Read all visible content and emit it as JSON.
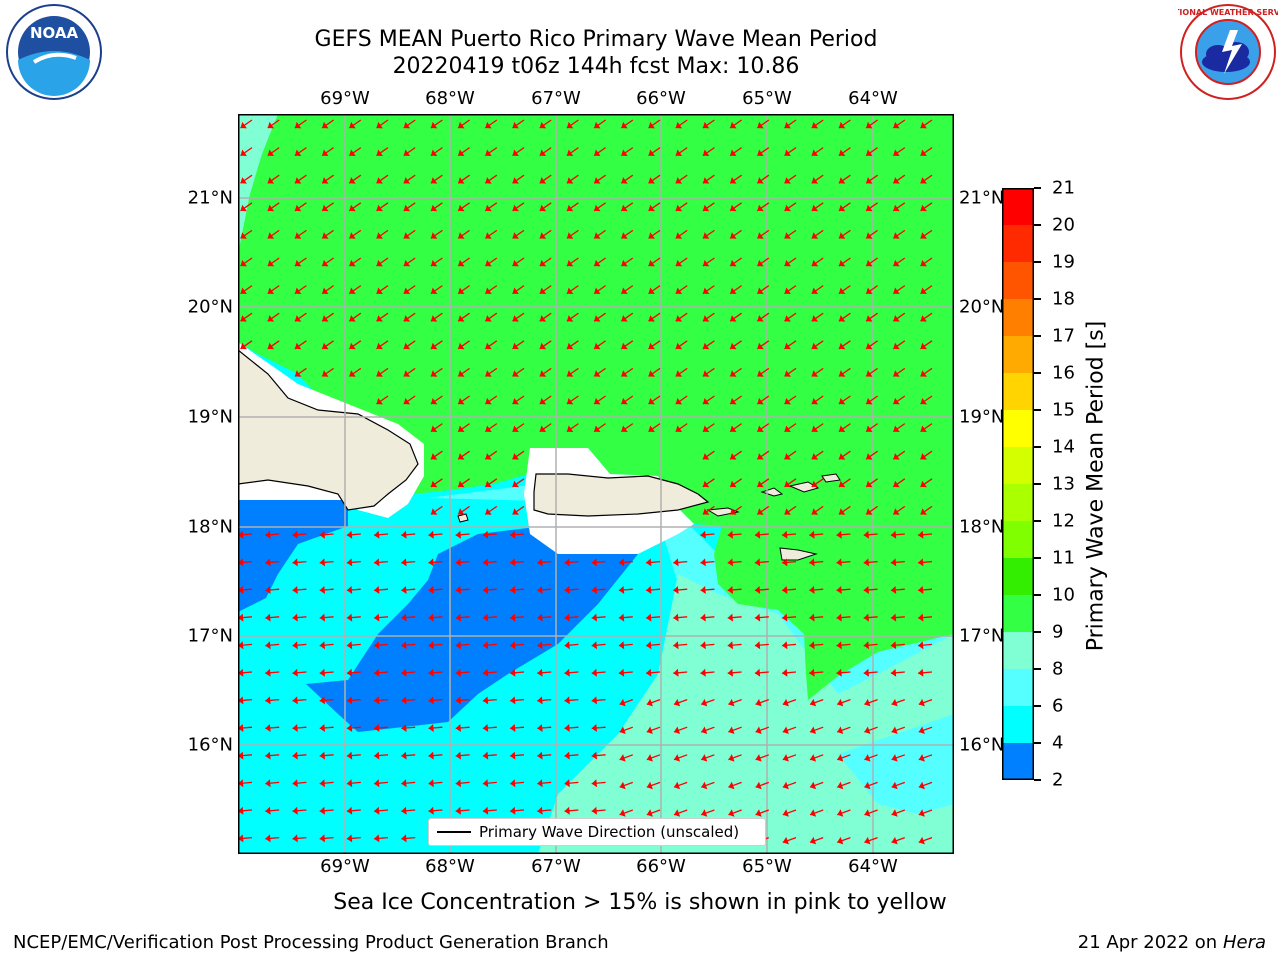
{
  "title": {
    "line1": "GEFS MEAN Puerto Rico Primary Wave Mean Period",
    "line2": "20220419 t06z 144h fcst   Max: 10.86"
  },
  "map": {
    "lon_labels": [
      "69°W",
      "68°W",
      "67°W",
      "66°W",
      "65°W",
      "64°W"
    ],
    "lat_labels": [
      "21°N",
      "20°N",
      "19°N",
      "18°N",
      "17°N",
      "16°N"
    ],
    "legend_label": "Primary Wave Direction (unscaled)",
    "arrow_color": "#ff0000",
    "land_color": "#efecdc",
    "grid_color": "#b0b0b0"
  },
  "colorbar": {
    "label": "Primary Wave Mean Period [s]",
    "ticks": [
      "21",
      "20",
      "19",
      "18",
      "17",
      "16",
      "15",
      "14",
      "13",
      "12",
      "11",
      "10",
      "9",
      "8",
      "6",
      "4",
      "2"
    ],
    "colors": [
      "#ff0000",
      "#ff2a00",
      "#ff5500",
      "#ff8000",
      "#ffaa00",
      "#ffd400",
      "#ffff00",
      "#d4ff00",
      "#aaff00",
      "#80ff00",
      "#33ee00",
      "#33ff44",
      "#80ffd4",
      "#55ffff",
      "#00ffff",
      "#0080ff",
      "#0000ff"
    ]
  },
  "caption": "Sea Ice Concentration > 15% is shown in pink to yellow",
  "footer": {
    "left": "NCEP/EMC/Verification Post Processing Product Generation Branch",
    "date": "21 Apr 2022 on ",
    "machine": "Hera"
  },
  "logos": {
    "noaa_text": "NOAA",
    "nws_text": "NATIONAL WEATHER SERVICE"
  }
}
